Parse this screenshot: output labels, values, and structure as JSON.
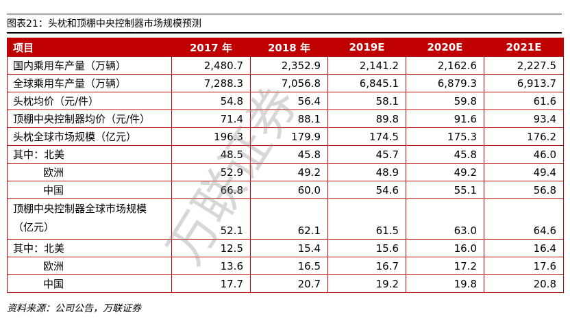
{
  "title": "图表21：头枕和顶棚中央控制器市场规模预测",
  "table": {
    "header": [
      "项目",
      "2017 年",
      "2018 年",
      "2019E",
      "2020E",
      "2021E"
    ],
    "rows": [
      [
        "国内乘用车产量（万辆）",
        "2,480.7",
        "2,352.9",
        "2,141.2",
        "2,162.6",
        "2,227.5"
      ],
      [
        "全球乘用车产量（万辆）",
        "7,288.3",
        "7,056.8",
        "6,845.1",
        "6,879.3",
        "6,913.7"
      ],
      [
        "头枕均价（元/件）",
        "54.8",
        "56.4",
        "58.1",
        "59.8",
        "61.6"
      ],
      [
        "顶棚中央控制器均价（元/件）",
        "71.4",
        "88.1",
        "89.8",
        "91.6",
        "93.4"
      ],
      [
        "头枕全球市场规模（亿元）",
        "196.3",
        "179.9",
        "174.5",
        "175.3",
        "176.2"
      ],
      [
        "其中：北美",
        "48.5",
        "45.8",
        "45.7",
        "45.8",
        "46.0"
      ],
      [
        "欧洲",
        "52.9",
        "49.2",
        "48.9",
        "49.2",
        "49.4"
      ],
      [
        "中国",
        "66.8",
        "60.0",
        "54.6",
        "55.1",
        "56.8"
      ],
      [
        "顶棚中央控制器全球市场规模（亿元）",
        "52.1",
        "62.1",
        "61.5",
        "63.0",
        "64.6"
      ],
      [
        "其中：北美",
        "12.5",
        "15.4",
        "15.6",
        "16.0",
        "16.4"
      ],
      [
        "欧洲",
        "13.6",
        "16.5",
        "16.7",
        "17.2",
        "17.6"
      ],
      [
        "中国",
        "17.7",
        "20.7",
        "19.2",
        "19.8",
        "20.8"
      ]
    ]
  },
  "watermark": "万联证券",
  "source": "资料来源：公司公告，万联证券"
}
